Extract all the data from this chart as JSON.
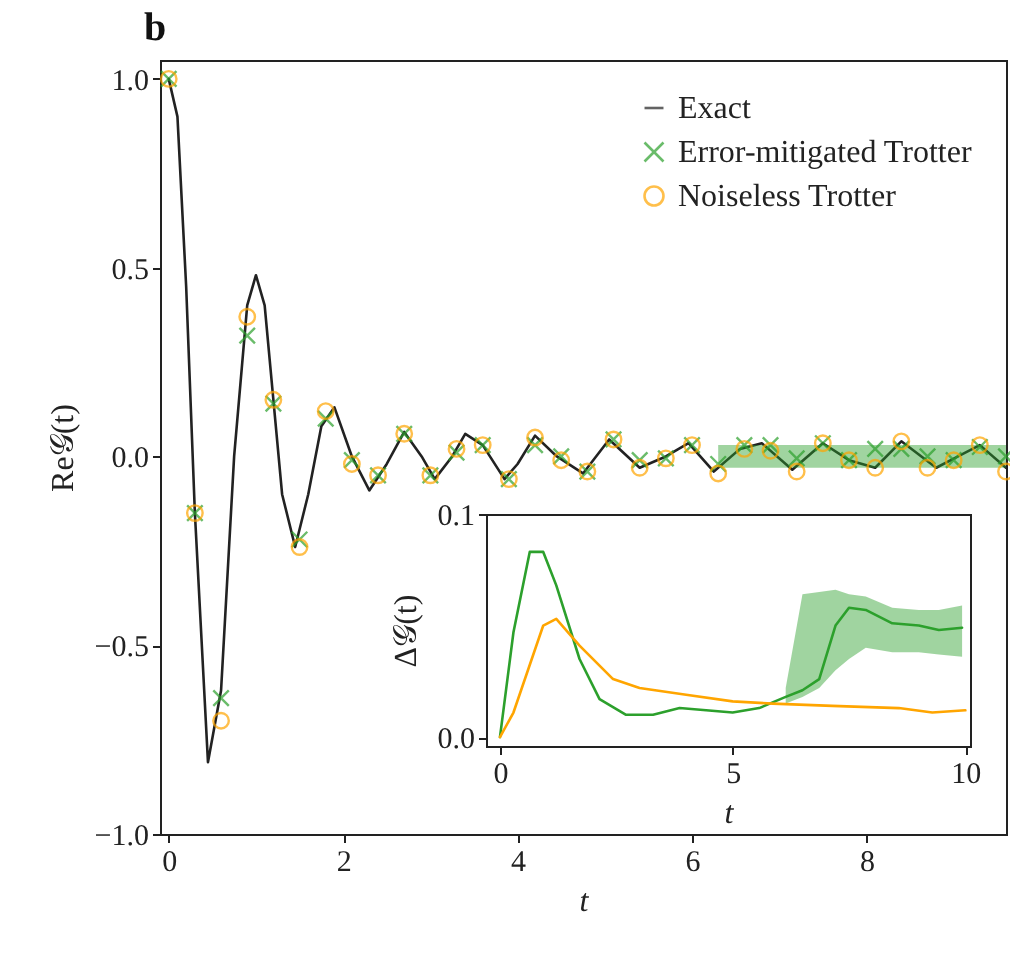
{
  "chart_data": [
    {
      "type": "scatter",
      "annotations": [
        "b"
      ],
      "xlabel": "t",
      "ylabel": "Re𝒢(t)",
      "xlim": [
        -0.1,
        9.6
      ],
      "ylim": [
        -1.0,
        1.05
      ],
      "xticks": [
        0,
        2,
        4,
        6,
        8
      ],
      "yticks": [
        {
          "value": -1,
          "label": "−1.0"
        },
        {
          "value": -0.5,
          "label": "−0.5"
        },
        {
          "value": 0,
          "label": "0.0"
        },
        {
          "value": 0.5,
          "label": "0.5"
        },
        {
          "value": 1,
          "label": "1.0"
        }
      ],
      "grid": false,
      "legend": "top right",
      "series": [
        {
          "name": "Exact",
          "type": "line",
          "marker": "none",
          "line_style": "solid",
          "color": "#222222",
          "x": [
            0,
            0.1,
            0.2,
            0.3,
            0.45,
            0.6,
            0.75,
            0.9,
            1.0,
            1.1,
            1.2,
            1.3,
            1.45,
            1.6,
            1.75,
            1.9,
            2.1,
            2.3,
            2.5,
            2.7,
            2.9,
            3.05,
            3.25,
            3.4,
            3.6,
            3.85,
            4.0,
            4.2,
            4.45,
            4.75,
            5.05,
            5.4,
            5.7,
            5.96,
            6.25,
            6.55,
            6.8,
            7.15,
            7.5,
            7.8,
            8.1,
            8.4,
            8.8,
            9.05,
            9.3,
            9.6
          ],
          "values": [
            1.0,
            0.9,
            0.45,
            -0.15,
            -0.81,
            -0.62,
            0.0,
            0.4,
            0.48,
            0.4,
            0.15,
            -0.1,
            -0.24,
            -0.1,
            0.08,
            0.13,
            0.0,
            -0.09,
            -0.02,
            0.065,
            0.0,
            -0.06,
            0.0,
            0.06,
            0.03,
            -0.06,
            -0.02,
            0.055,
            0.0,
            -0.045,
            0.045,
            -0.03,
            0.0,
            0.035,
            -0.04,
            0.02,
            0.035,
            -0.035,
            0.035,
            -0.01,
            -0.03,
            0.04,
            -0.03,
            0.0,
            0.03,
            -0.03
          ]
        },
        {
          "name": "Error-mitigated Trotter",
          "marker": "cross",
          "color": "#2ca02c",
          "x": [
            0,
            0.3,
            0.6,
            0.9,
            1.2,
            1.5,
            1.8,
            2.1,
            2.4,
            2.7,
            3.0,
            3.3,
            3.6,
            3.9,
            4.2,
            4.5,
            4.8,
            5.1,
            5.4,
            5.7,
            6.0,
            6.3,
            6.6,
            6.9,
            7.2,
            7.5,
            7.8,
            8.1,
            8.4,
            8.7,
            9.0,
            9.3,
            9.6
          ],
          "values": [
            1.0,
            -0.15,
            -0.64,
            0.32,
            0.14,
            -0.22,
            0.1,
            -0.01,
            -0.05,
            0.06,
            -0.05,
            0.01,
            0.03,
            -0.06,
            0.03,
            0.0,
            -0.04,
            0.045,
            -0.01,
            -0.005,
            0.03,
            -0.02,
            0.03,
            0.03,
            -0.005,
            0.035,
            -0.01,
            0.02,
            0.02,
            0.0,
            -0.01,
            0.025,
            0.0
          ],
          "lower": [
            null,
            null,
            null,
            null,
            null,
            null,
            null,
            null,
            null,
            null,
            null,
            null,
            null,
            null,
            null,
            null,
            null,
            null,
            null,
            null,
            null,
            -0.03,
            -0.03,
            -0.03,
            -0.03,
            -0.03,
            -0.03,
            -0.03,
            -0.03,
            -0.03,
            -0.03,
            -0.03,
            -0.03
          ],
          "upper": [
            null,
            null,
            null,
            null,
            null,
            null,
            null,
            null,
            null,
            null,
            null,
            null,
            null,
            null,
            null,
            null,
            null,
            null,
            null,
            null,
            null,
            0.03,
            0.03,
            0.03,
            0.03,
            0.03,
            0.03,
            0.03,
            0.03,
            0.03,
            0.03,
            0.03,
            0.03
          ]
        },
        {
          "name": "Noiseless Trotter",
          "marker": "circle",
          "color": "#ffa500",
          "x": [
            0,
            0.3,
            0.6,
            0.9,
            1.2,
            1.5,
            1.8,
            2.1,
            2.4,
            2.7,
            3.0,
            3.3,
            3.6,
            3.9,
            4.2,
            4.5,
            4.8,
            5.1,
            5.4,
            5.7,
            6.0,
            6.3,
            6.6,
            6.9,
            7.2,
            7.5,
            7.8,
            8.1,
            8.4,
            8.7,
            9.0,
            9.3,
            9.6
          ],
          "values": [
            1.0,
            -0.15,
            -0.7,
            0.37,
            0.15,
            -0.24,
            0.12,
            -0.02,
            -0.05,
            0.06,
            -0.05,
            0.02,
            0.03,
            -0.06,
            0.05,
            -0.01,
            -0.04,
            0.045,
            -0.03,
            -0.005,
            0.03,
            -0.045,
            0.02,
            0.015,
            -0.04,
            0.035,
            -0.01,
            -0.03,
            0.04,
            -0.03,
            -0.01,
            0.03,
            -0.04
          ]
        }
      ]
    },
    {
      "type": "line",
      "xlabel": "t",
      "ylabel": "Δ𝒢(t)",
      "xlim": [
        -0.3,
        10.1
      ],
      "ylim": [
        -0.004,
        0.1
      ],
      "xticks": [
        0,
        5,
        10
      ],
      "yticks": [
        {
          "value": 0,
          "label": "0.0"
        },
        {
          "value": 0.1,
          "label": "0.1"
        }
      ],
      "grid": false,
      "series": [
        {
          "color": "#2ca02c",
          "x": [
            0,
            0.29,
            0.64,
            0.93,
            1.21,
            1.71,
            2.14,
            2.71,
            3.29,
            3.86,
            4.43,
            5.0,
            5.57,
            6.14,
            6.5,
            6.86,
            7.21,
            7.5,
            7.86,
            8.43,
            9.0,
            9.43,
            9.93
          ],
          "values": [
            0.0,
            0.047,
            0.083,
            0.083,
            0.068,
            0.035,
            0.017,
            0.01,
            0.01,
            0.013,
            0.012,
            0.011,
            0.013,
            0.018,
            0.021,
            0.026,
            0.05,
            0.058,
            0.057,
            0.051,
            0.05,
            0.048,
            0.049
          ],
          "lower": [
            null,
            null,
            null,
            null,
            null,
            null,
            null,
            null,
            null,
            null,
            null,
            null,
            null,
            0.015,
            0.018,
            0.022,
            0.03,
            0.035,
            0.04,
            0.038,
            0.038,
            0.037,
            0.036
          ],
          "upper": [
            null,
            null,
            null,
            null,
            null,
            null,
            null,
            null,
            null,
            null,
            null,
            null,
            null,
            0.022,
            0.064,
            0.065,
            0.066,
            0.064,
            0.063,
            0.058,
            0.057,
            0.057,
            0.059
          ]
        },
        {
          "color": "#ffa500",
          "x": [
            0,
            0.29,
            0.93,
            1.21,
            1.71,
            2.43,
            3.0,
            4.0,
            5.0,
            5.86,
            7.14,
            8.57,
            9.29,
            10.0
          ],
          "values": [
            0.0,
            0.011,
            0.05,
            0.053,
            0.041,
            0.026,
            0.022,
            0.019,
            0.016,
            0.015,
            0.014,
            0.013,
            0.011,
            0.012
          ]
        }
      ]
    }
  ]
}
